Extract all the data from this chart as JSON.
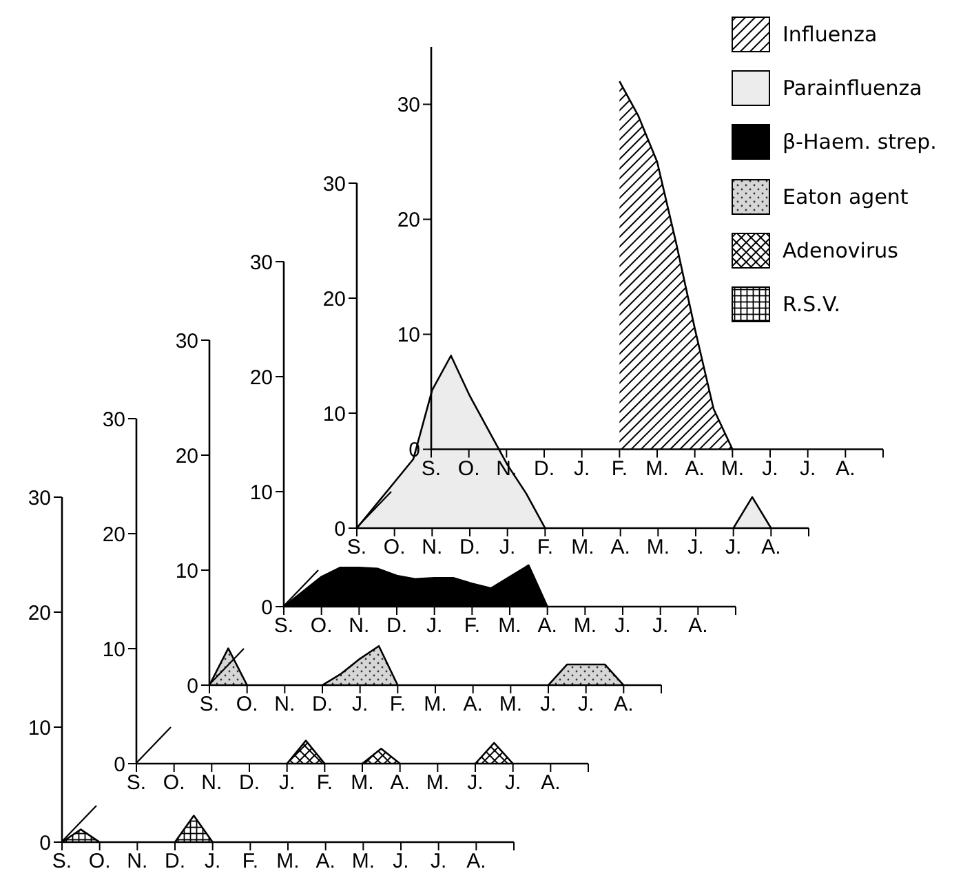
{
  "chart_data": [
    {
      "type": "area",
      "legend": "top right",
      "categories": [
        "S.",
        null,
        "O.",
        null,
        "N.",
        null,
        "D.",
        null,
        "J.",
        null,
        "F.",
        null,
        "M.",
        null,
        "A.",
        null,
        "M.",
        null,
        "J.",
        null,
        "J.",
        null,
        "A.",
        null,
        null
      ],
      "ylim": [
        0,
        35
      ],
      "yticks": [
        0,
        10,
        20,
        30
      ],
      "series": [
        {
          "name": "Influenza",
          "color": "#000000",
          "values": [
            null,
            null,
            null,
            null,
            null,
            null,
            null,
            null,
            null,
            null,
            32,
            29,
            25,
            18,
            10.5,
            3.5,
            0,
            null,
            null,
            null,
            null,
            null,
            null,
            null,
            null
          ]
        }
      ]
    },
    {
      "type": "area",
      "legend": "top right",
      "categories": [
        "S.",
        null,
        "O.",
        null,
        "N.",
        null,
        "D.",
        null,
        "J.",
        null,
        "F.",
        null,
        "M.",
        null,
        "A.",
        null,
        "M.",
        null,
        "J.",
        null,
        "J.",
        null,
        "A.",
        null,
        null
      ],
      "ylim": [
        0,
        30
      ],
      "yticks": [
        0,
        10,
        20,
        30
      ],
      "series": [
        {
          "name": "Parainfluenza",
          "color": "#ececec",
          "values": [
            0,
            2,
            4,
            6,
            12,
            15,
            11.5,
            8.5,
            5.5,
            3,
            0,
            null,
            null,
            null,
            null,
            null,
            null,
            null,
            null,
            null,
            0,
            2.7,
            0,
            null,
            null
          ]
        }
      ]
    },
    {
      "type": "area",
      "legend": "top right",
      "categories": [
        "S.",
        null,
        "O.",
        null,
        "N.",
        null,
        "D.",
        null,
        "J.",
        null,
        "F.",
        null,
        "M.",
        null,
        "A.",
        null,
        "M.",
        null,
        "J.",
        null,
        "J.",
        null,
        "A.",
        null,
        null
      ],
      "ylim": [
        0,
        30
      ],
      "yticks": [
        0,
        10,
        20,
        30
      ],
      "series": [
        {
          "name": "β-Haem. strep.",
          "color": "#000000",
          "values": [
            0,
            1.3,
            2.6,
            3.4,
            3.4,
            3.3,
            2.7,
            2.4,
            2.5,
            2.5,
            2,
            1.6,
            2.6,
            3.6,
            0,
            null,
            null,
            null,
            null,
            null,
            null,
            null,
            null,
            null,
            null
          ]
        }
      ]
    },
    {
      "type": "area",
      "legend": "top right",
      "categories": [
        "S.",
        null,
        "O.",
        null,
        "N.",
        null,
        "D.",
        null,
        "J.",
        null,
        "F.",
        null,
        "M.",
        null,
        "A.",
        null,
        "M.",
        null,
        "J.",
        null,
        "J.",
        null,
        "A.",
        null,
        null
      ],
      "ylim": [
        0,
        30
      ],
      "yticks": [
        0,
        10,
        20,
        30
      ],
      "series": [
        {
          "name": "Eaton agent",
          "color": "#d6d6d6",
          "values": [
            0,
            3.2,
            0,
            null,
            null,
            null,
            0,
            1,
            2.3,
            3.4,
            0,
            null,
            null,
            null,
            null,
            null,
            null,
            null,
            0,
            1.8,
            1.8,
            1.8,
            0,
            null,
            null
          ]
        }
      ]
    },
    {
      "type": "area",
      "legend": "top right",
      "categories": [
        "S.",
        null,
        "O.",
        null,
        "N.",
        null,
        "D.",
        null,
        "J.",
        null,
        "F.",
        null,
        "M.",
        null,
        "A.",
        null,
        "M.",
        null,
        "J.",
        null,
        "J.",
        null,
        "A.",
        null,
        null
      ],
      "ylim": [
        0,
        30
      ],
      "yticks": [
        0,
        10,
        20,
        30
      ],
      "series": [
        {
          "name": "Adenovirus",
          "color": "#000000",
          "values": [
            null,
            null,
            null,
            null,
            null,
            null,
            null,
            null,
            0,
            2,
            0,
            null,
            0,
            1.3,
            0,
            null,
            null,
            null,
            0,
            1.8,
            0,
            null,
            null,
            null,
            null
          ]
        }
      ]
    },
    {
      "type": "area",
      "legend": "top right",
      "categories": [
        "S.",
        null,
        "O.",
        null,
        "N.",
        null,
        "D.",
        null,
        "J.",
        null,
        "F.",
        null,
        "M.",
        null,
        "A.",
        null,
        "M.",
        null,
        "J.",
        null,
        "J.",
        null,
        "A.",
        null,
        null
      ],
      "ylim": [
        0,
        30
      ],
      "yticks": [
        0,
        10,
        20,
        30
      ],
      "series": [
        {
          "name": "R.S.V.",
          "color": "#000000",
          "values": [
            0,
            1.1,
            0,
            null,
            null,
            null,
            0,
            2.3,
            0,
            null,
            null,
            null,
            null,
            null,
            null,
            null,
            null,
            null,
            null,
            null,
            null,
            null,
            null,
            null,
            null
          ]
        }
      ]
    }
  ]
}
